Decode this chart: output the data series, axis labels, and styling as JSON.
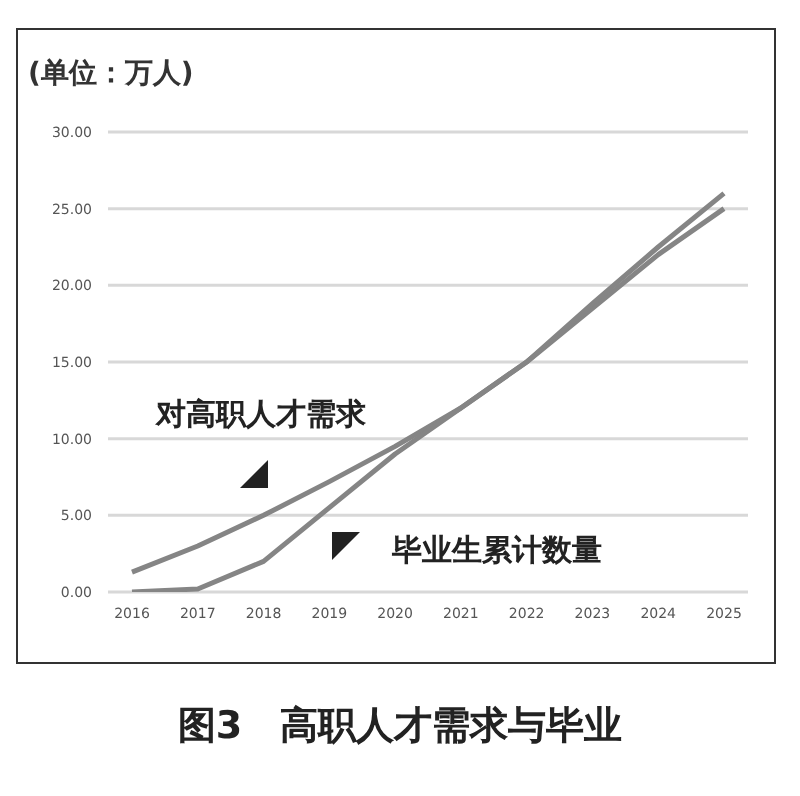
{
  "chart_data": {
    "type": "line",
    "title": "图3　高职人才需求与毕业",
    "ylabel": "(单位：万人)",
    "categories": [
      "2016",
      "2017",
      "2018",
      "2019",
      "2020",
      "2021",
      "2022",
      "2023",
      "2024",
      "2025"
    ],
    "series": [
      {
        "name": "对高职人才需求",
        "color": "#858585",
        "values": [
          1.3,
          3,
          5,
          7.2,
          9.5,
          12,
          15,
          18.5,
          22,
          25
        ]
      },
      {
        "name": "毕业生累计数量",
        "color": "#858585",
        "values": [
          0,
          0.2,
          2,
          5.5,
          9,
          12,
          15,
          18.8,
          22.5,
          26
        ]
      }
    ],
    "ylim": [
      0,
      30
    ],
    "yticks": [
      {
        "value": 0,
        "label": "0.00"
      },
      {
        "value": 5,
        "label": "5.00"
      },
      {
        "value": 10,
        "label": "10.00"
      },
      {
        "value": 15,
        "label": "15.00"
      },
      {
        "value": 20,
        "label": "20.00"
      },
      {
        "value": 25,
        "label": "25.00"
      },
      {
        "value": 30,
        "label": "30.00"
      }
    ],
    "grid": "y",
    "legend": false
  }
}
